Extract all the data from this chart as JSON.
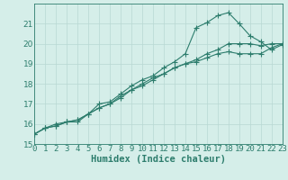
{
  "title": "",
  "xlabel": "Humidex (Indice chaleur)",
  "x_values": [
    0,
    1,
    2,
    3,
    4,
    5,
    6,
    7,
    8,
    9,
    10,
    11,
    12,
    13,
    14,
    15,
    16,
    17,
    18,
    19,
    20,
    21,
    22,
    23
  ],
  "line1_y": [
    15.5,
    15.8,
    15.9,
    16.1,
    16.1,
    16.5,
    16.8,
    17.0,
    17.3,
    17.7,
    17.9,
    18.2,
    18.5,
    18.8,
    19.0,
    19.2,
    19.5,
    19.7,
    20.0,
    20.0,
    20.0,
    19.9,
    20.0,
    20.0
  ],
  "line2_y": [
    15.5,
    15.8,
    15.9,
    16.1,
    16.2,
    16.5,
    17.0,
    17.1,
    17.5,
    17.9,
    18.2,
    18.4,
    18.8,
    19.1,
    19.5,
    20.8,
    21.05,
    21.4,
    21.55,
    21.0,
    20.4,
    20.1,
    19.7,
    19.95
  ],
  "line3_y": [
    15.5,
    15.8,
    16.0,
    16.1,
    16.2,
    16.5,
    16.8,
    17.0,
    17.4,
    17.7,
    18.0,
    18.3,
    18.5,
    18.8,
    19.0,
    19.1,
    19.3,
    19.5,
    19.6,
    19.5,
    19.5,
    19.5,
    19.8,
    20.0
  ],
  "line_color": "#2d7d6d",
  "bg_color": "#d5eee9",
  "grid_color": "#b8d8d3",
  "ylim": [
    15,
    22
  ],
  "xlim": [
    0,
    23
  ],
  "yticks": [
    15,
    16,
    17,
    18,
    19,
    20,
    21
  ],
  "xticks": [
    0,
    1,
    2,
    3,
    4,
    5,
    6,
    7,
    8,
    9,
    10,
    11,
    12,
    13,
    14,
    15,
    16,
    17,
    18,
    19,
    20,
    21,
    22,
    23
  ],
  "marker": "+",
  "markersize": 4,
  "linewidth": 0.8,
  "tick_fontsize": 6.5,
  "xlabel_fontsize": 7.5
}
